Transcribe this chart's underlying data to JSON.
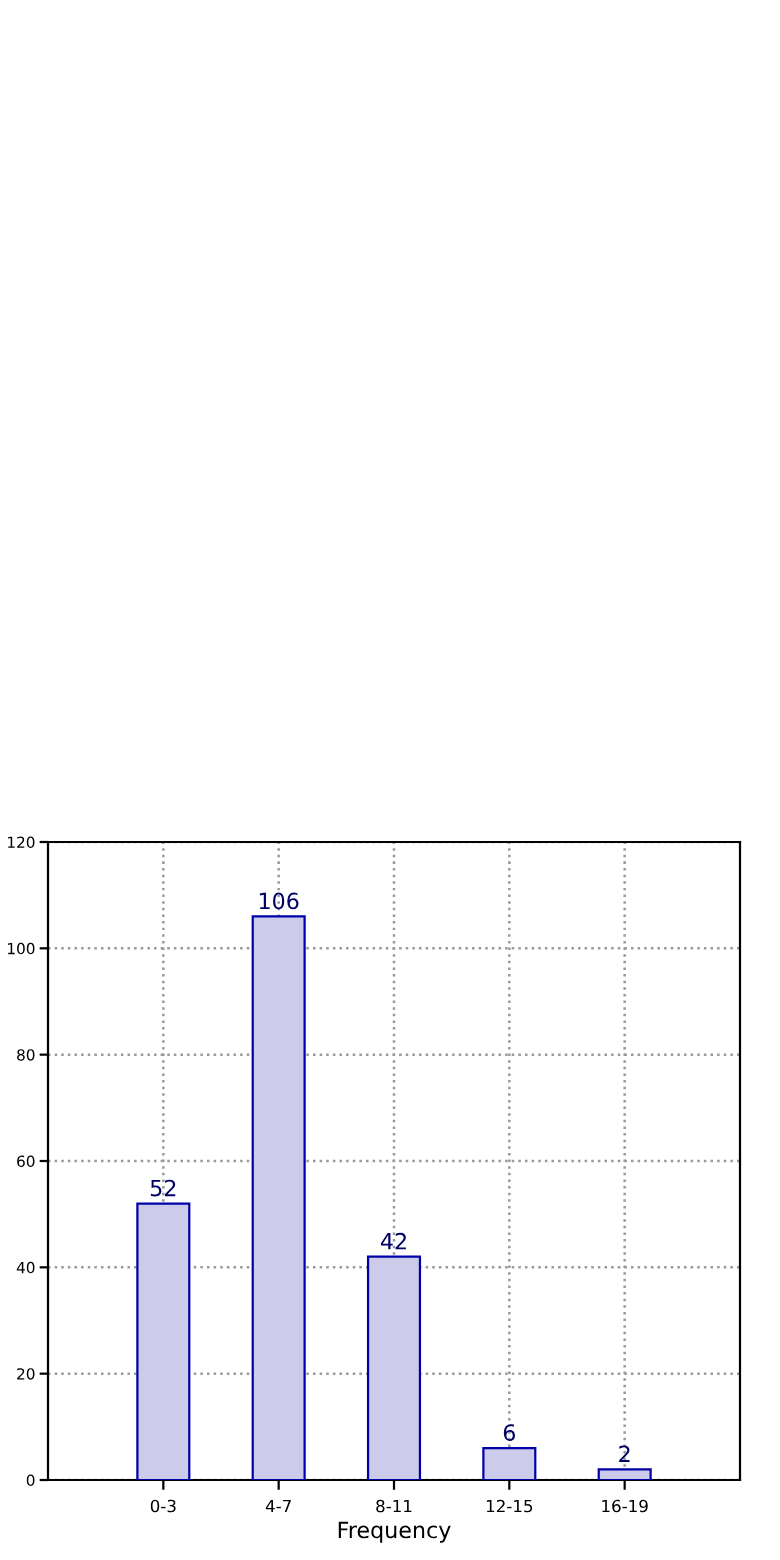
{
  "chart_data": {
    "type": "bar",
    "xlabel": "Frequency",
    "categories": [
      "0-3",
      "4-7",
      "8-11",
      "12-15",
      "16-19"
    ],
    "values": [
      52,
      106,
      42,
      6,
      2
    ],
    "color": "#ccccea",
    "ylim": [
      0,
      120
    ],
    "yticks": [
      0,
      20,
      40,
      60,
      80,
      100,
      120
    ],
    "grid": true,
    "data_labels": true
  }
}
